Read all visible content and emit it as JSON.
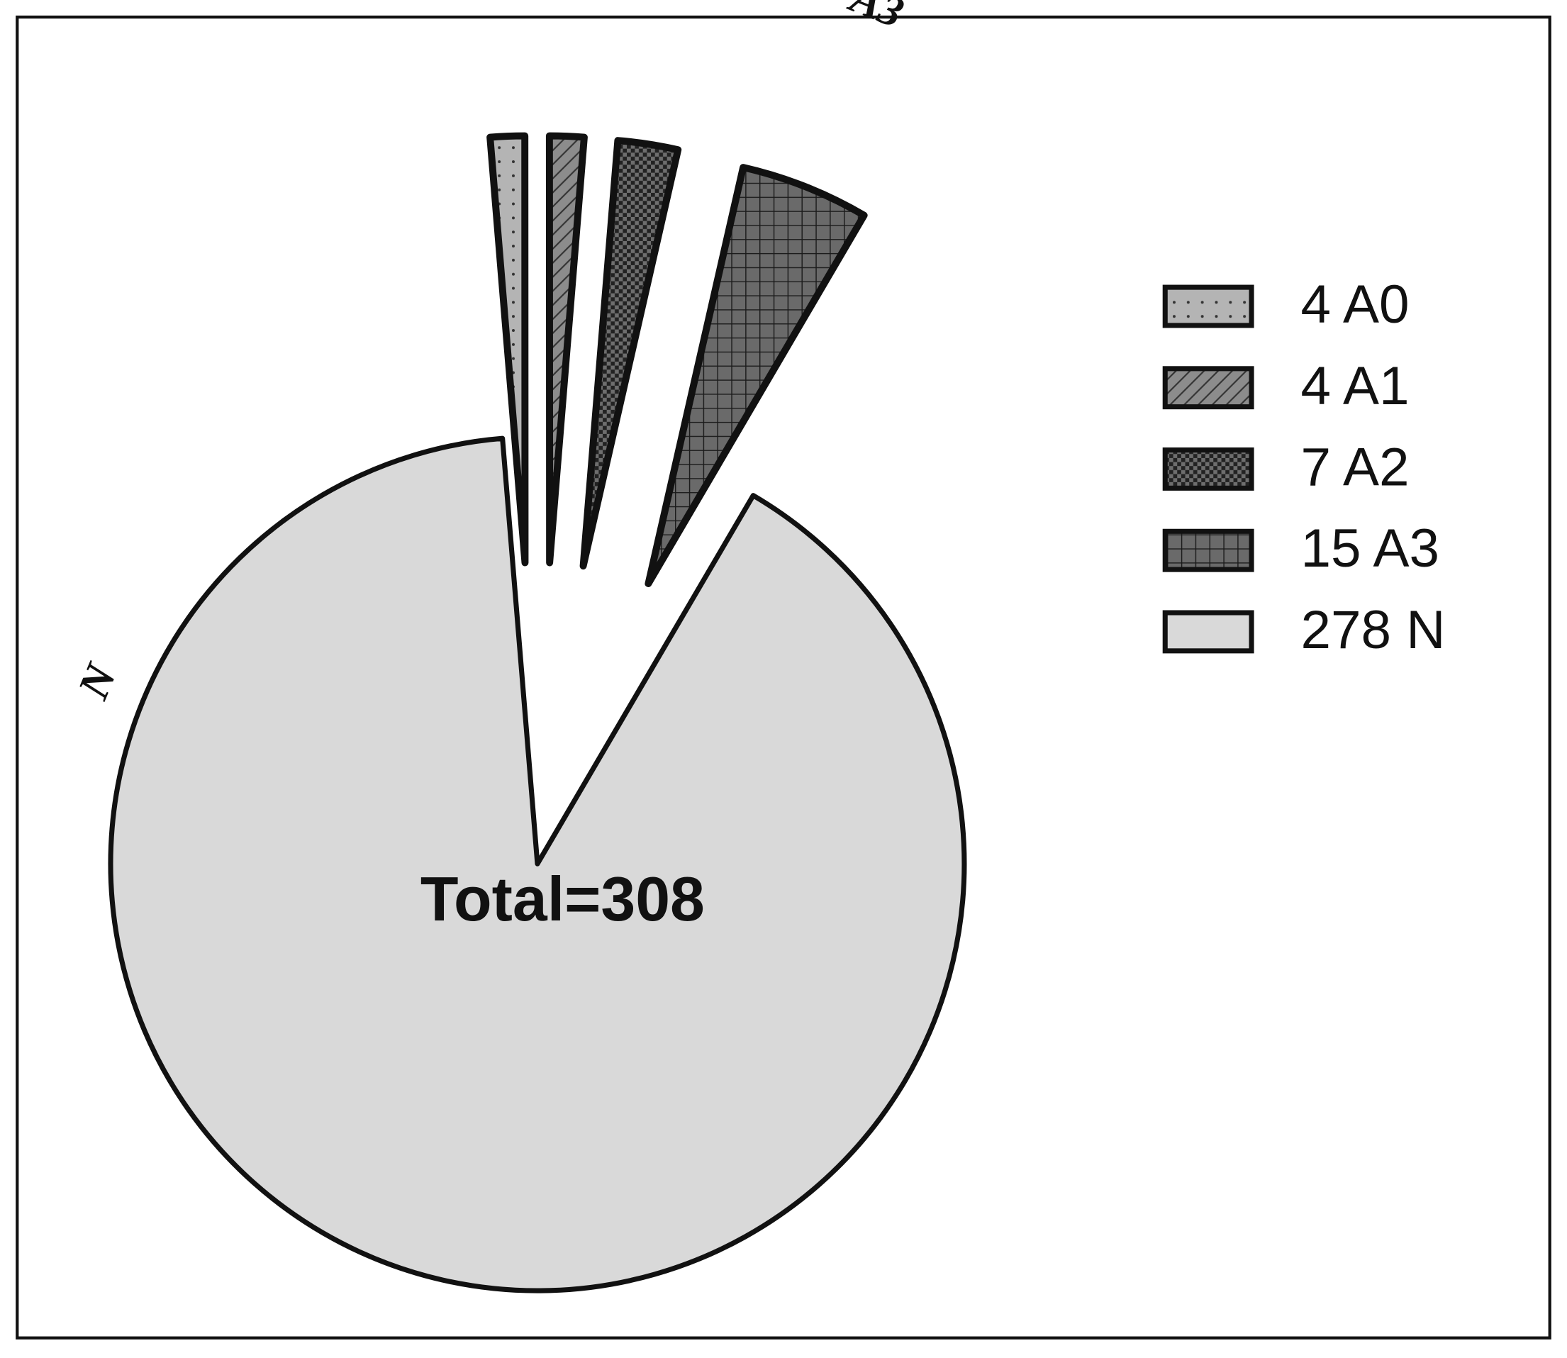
{
  "chart_data": {
    "type": "pie",
    "categories": [
      "A0",
      "A1",
      "A2",
      "A3",
      "N"
    ],
    "values": [
      4,
      4,
      7,
      15,
      278
    ],
    "colors": [
      "#b4b4b4",
      "#8c8c8c",
      "#6e6e6e",
      "#6a6a6a",
      "#d9d9d9"
    ],
    "patterns": [
      "dots",
      "diagonal",
      "checker",
      "grid",
      "none"
    ],
    "legend_labels": [
      "4 A0",
      "4 A1",
      "7 A2",
      "15 A3",
      "278 N"
    ],
    "legend": "right",
    "annotation": "Total=308"
  }
}
